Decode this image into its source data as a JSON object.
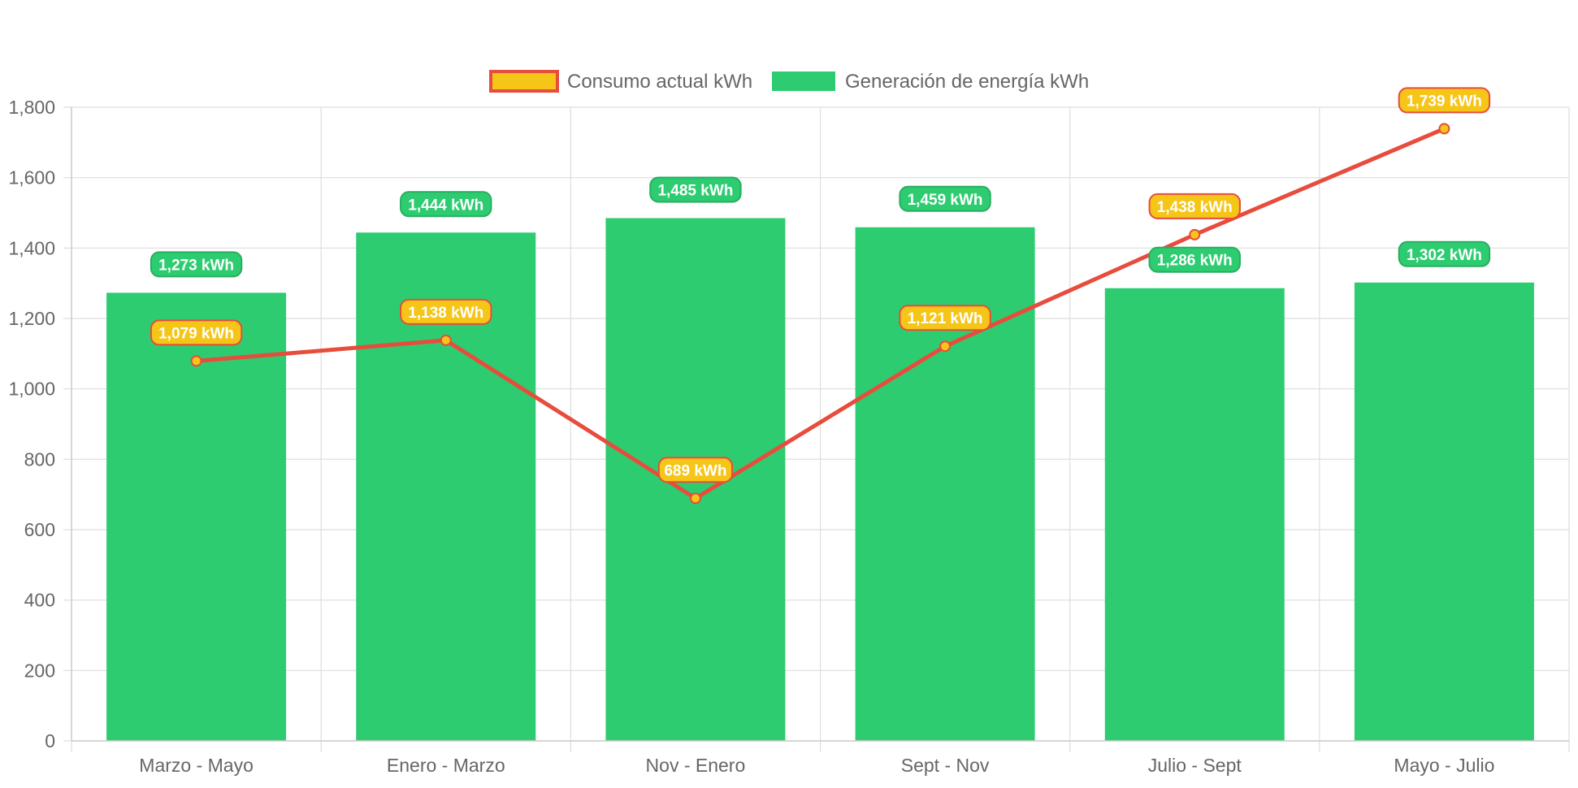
{
  "chart_data": {
    "type": "bar",
    "categories": [
      "Marzo - Mayo",
      "Enero - Marzo",
      "Nov - Enero",
      "Sept - Nov",
      "Julio - Sept",
      "Mayo - Julio"
    ],
    "series": [
      {
        "name": "Consumo actual kWh",
        "type": "line",
        "values": [
          1079,
          1138,
          689,
          1121,
          1438,
          1739
        ],
        "labels": [
          "1,079 kWh",
          "1,138 kWh",
          "689 kWh",
          "1,121 kWh",
          "1,438 kWh",
          "1,739 kWh"
        ],
        "line_color": "#e74c3c",
        "point_color": "#f5c518"
      },
      {
        "name": "Generación de energía kWh",
        "type": "bar",
        "values": [
          1273,
          1444,
          1485,
          1459,
          1286,
          1302
        ],
        "labels": [
          "1,273 kWh",
          "1,444 kWh",
          "1,485 kWh",
          "1,459 kWh",
          "1,286 kWh",
          "1,302 kWh"
        ],
        "color": "#2ecc71",
        "label_border": "#27ae60"
      }
    ],
    "ylim": [
      0,
      1800
    ],
    "yticks": [
      0,
      200,
      400,
      600,
      800,
      1000,
      1200,
      1400,
      1600,
      1800
    ],
    "ytick_labels": [
      "0",
      "200",
      "400",
      "600",
      "800",
      "1,000",
      "1,200",
      "1,400",
      "1,600",
      "1,800"
    ],
    "grid": true,
    "legend_position": "top-center",
    "title": "",
    "xlabel": "",
    "ylabel": ""
  }
}
